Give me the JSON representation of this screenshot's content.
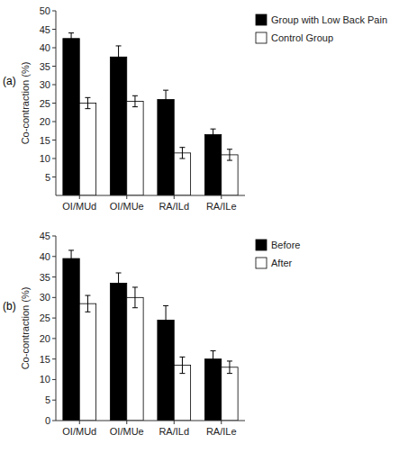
{
  "chart_data": [
    {
      "type": "bar",
      "annotations": [
        "(a)"
      ],
      "y_label": "Co-contraction (%)",
      "categories": [
        "OI/MUd",
        "OI/MUe",
        "RA/ILd",
        "RA/ILe"
      ],
      "series": [
        {
          "name": "Group with Low Back Pain",
          "color": "#000000",
          "values": [
            42.5,
            37.5,
            26.0,
            16.5
          ],
          "errors": [
            1.5,
            3.0,
            2.5,
            1.5
          ]
        },
        {
          "name": "Control Group",
          "color": "#ffffff",
          "values": [
            25.0,
            25.5,
            11.5,
            11.0
          ],
          "errors": [
            1.5,
            1.5,
            1.5,
            1.5
          ]
        }
      ],
      "ylim": [
        0,
        50
      ],
      "yticks": [
        5,
        10,
        15,
        20,
        25,
        30,
        35,
        40,
        45,
        50
      ],
      "grid": false,
      "legend": "right"
    },
    {
      "type": "bar",
      "annotations": [
        "(b)"
      ],
      "y_label": "Co-contraction (%)",
      "categories": [
        "OI/MUd",
        "OI/MUe",
        "RA/ILd",
        "RA/ILe"
      ],
      "series": [
        {
          "name": "Before",
          "color": "#000000",
          "values": [
            39.5,
            33.5,
            24.5,
            15.0
          ],
          "errors": [
            2.0,
            2.5,
            3.5,
            2.0
          ]
        },
        {
          "name": "After",
          "color": "#ffffff",
          "values": [
            28.5,
            30.0,
            13.5,
            13.0
          ],
          "errors": [
            2.0,
            2.5,
            2.0,
            1.5
          ]
        }
      ],
      "ylim": [
        0,
        45
      ],
      "yticks": [
        0,
        5,
        10,
        15,
        20,
        25,
        30,
        35,
        40,
        45
      ],
      "grid": false,
      "legend": "right"
    }
  ]
}
